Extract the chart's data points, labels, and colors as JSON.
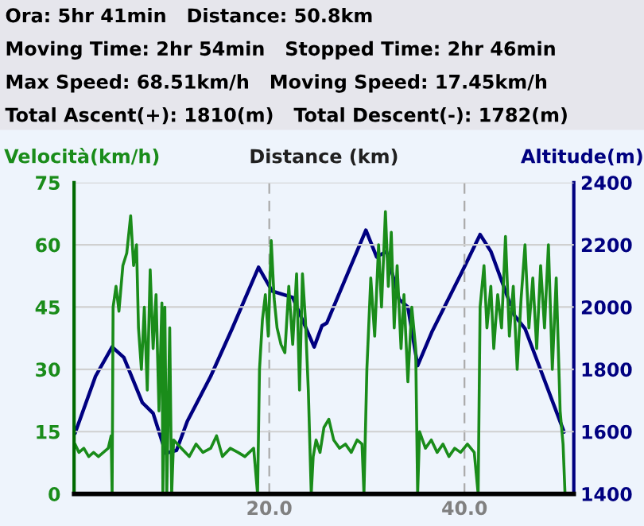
{
  "chart_data": {
    "type": "line",
    "annotations": [
      "Ora: 5hr 41min   Distance: 50.8km",
      "Moving Time: 2hr 54min   Stopped Time: 2hr 46min",
      "Max Speed: 68.51km/h   Moving Speed: 17.45km/h",
      "Total Ascent(+): 1810(m)   Total Descent(-): 1782(m)"
    ],
    "xlabel": "Distance (km)",
    "ylabel": "Velocità(km/h)",
    "y2label": "Altitude(m)",
    "xlim": [
      0,
      51.2
    ],
    "xticks": [
      {
        "value": 20,
        "label": "20.0"
      },
      {
        "value": 40,
        "label": "40.0"
      }
    ],
    "ylim": [
      0,
      75
    ],
    "yticks": [
      0,
      15,
      30,
      45,
      60,
      75
    ],
    "y2lim": [
      1400,
      2400
    ],
    "y2ticks": [
      1400,
      1600,
      1800,
      2000,
      2200,
      2400
    ],
    "grid": true,
    "legend": false,
    "series": [
      {
        "color": "#1a8c1a",
        "x": [
          0.1,
          0.5,
          1.0,
          1.5,
          2.0,
          2.5,
          3.0,
          3.5,
          3.8,
          3.9,
          4.0,
          4.3,
          4.6,
          5.0,
          5.4,
          5.8,
          6.1,
          6.4,
          6.6,
          6.9,
          7.2,
          7.5,
          7.8,
          8.1,
          8.4,
          8.7,
          9.0,
          9.1,
          9.3,
          9.5,
          9.8,
          10.0,
          10.2,
          11.0,
          11.8,
          12.5,
          13.2,
          14.0,
          14.6,
          15.2,
          16.0,
          16.8,
          17.5,
          18.4,
          18.8,
          19.0,
          19.3,
          19.6,
          19.9,
          20.2,
          20.5,
          20.8,
          21.2,
          21.6,
          22.0,
          22.4,
          22.8,
          23.1,
          23.4,
          23.7,
          24.0,
          24.3,
          24.5,
          24.8,
          25.2,
          25.6,
          26.1,
          26.6,
          27.2,
          27.8,
          28.4,
          29.0,
          29.5,
          29.7,
          30.0,
          30.4,
          30.8,
          31.2,
          31.5,
          31.9,
          32.2,
          32.5,
          32.8,
          33.1,
          33.5,
          33.8,
          34.2,
          34.6,
          35.0,
          35.2,
          35.4,
          36.0,
          36.6,
          37.2,
          37.8,
          38.4,
          39.0,
          39.6,
          40.3,
          41.0,
          41.4,
          41.6,
          42.0,
          42.3,
          42.7,
          43.0,
          43.4,
          43.8,
          44.2,
          44.6,
          45.0,
          45.4,
          45.8,
          46.2,
          46.6,
          47.0,
          47.4,
          47.8,
          48.2,
          48.6,
          49.0,
          49.4,
          49.8,
          50.1,
          50.3
        ],
        "values": [
          12,
          10,
          11,
          9,
          10,
          9,
          10,
          11,
          14,
          0,
          45,
          50,
          44,
          55,
          58,
          67,
          55,
          60,
          40,
          30,
          45,
          25,
          54,
          35,
          48,
          20,
          46,
          0,
          45,
          0,
          40,
          0,
          13,
          11,
          9,
          12,
          10,
          11,
          14,
          9,
          11,
          10,
          9,
          11,
          0,
          30,
          42,
          48,
          38,
          61,
          47,
          40,
          36,
          34,
          50,
          36,
          53,
          25,
          53,
          42,
          25,
          0,
          9,
          13,
          10,
          16,
          18,
          13,
          11,
          12,
          10,
          13,
          12,
          0,
          30,
          52,
          38,
          60,
          45,
          68,
          50,
          63,
          40,
          55,
          35,
          48,
          27,
          45,
          35,
          0,
          15,
          11,
          13,
          10,
          12,
          9,
          11,
          10,
          12,
          10,
          0,
          45,
          55,
          40,
          50,
          35,
          48,
          40,
          62,
          38,
          50,
          30,
          47,
          60,
          40,
          52,
          35,
          55,
          40,
          60,
          30,
          52,
          20,
          12,
          0
        ]
      },
      {
        "color": "#000080",
        "axis": "y2",
        "x": [
          0.1,
          2.2,
          3.9,
          5.1,
          7.0,
          8.1,
          9.4,
          10.5,
          11.6,
          14.0,
          16.2,
          18.9,
          20.3,
          22.4,
          24.6,
          25.4,
          25.9,
          29.9,
          31.0,
          32.0,
          33.3,
          34.2,
          35.2,
          36.7,
          39.7,
          41.6,
          42.7,
          45.1,
          46.2,
          50.2
        ],
        "values": [
          1595,
          1778,
          1872,
          1838,
          1693,
          1659,
          1531,
          1540,
          1633,
          1778,
          1931,
          2128,
          2051,
          2031,
          1872,
          1940,
          1949,
          2247,
          2161,
          2179,
          2025,
          2000,
          1812,
          1923,
          2110,
          2233,
          2179,
          1974,
          1931,
          1599
        ]
      }
    ]
  }
}
